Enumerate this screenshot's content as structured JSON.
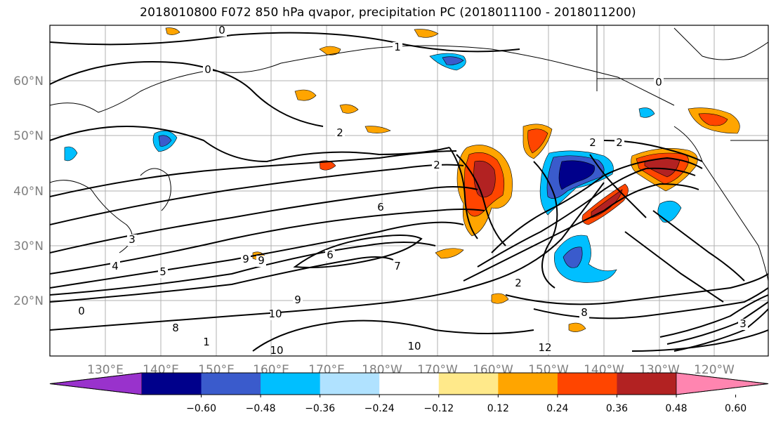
{
  "title": "2018010800 F072 850 hPa qvapor, precipitation PC (2018011100 - 2018011200)",
  "map": {
    "region": "North Pacific",
    "grid": true,
    "lat_labels": [
      "60°N",
      "50°N",
      "40°N",
      "30°N",
      "20°N"
    ],
    "lon_labels": [
      "130°E",
      "140°E",
      "150°E",
      "160°E",
      "170°E",
      "180°W",
      "170°W",
      "160°W",
      "150°W",
      "140°W",
      "130°W",
      "120°W"
    ]
  },
  "fields": {
    "contour_field": "850 hPa qvapor",
    "contour_labels": [
      "0",
      "1",
      "0",
      "0",
      "2",
      "2",
      "2",
      "2",
      "3",
      "4",
      "5",
      "6",
      "7",
      "8",
      "9",
      "9",
      "10",
      "10",
      "10",
      "12",
      "0",
      "1",
      "3",
      "2",
      "6",
      "8",
      "9"
    ],
    "shaded_field": "precipitation PC"
  },
  "colorbar": {
    "orientation": "horizontal",
    "extend": "both",
    "colors": [
      "#9932cc",
      "#00008b",
      "#3a5bcc",
      "#00bfff",
      "#b0e2ff",
      "#ffffff",
      "#ffe98a",
      "#ffa500",
      "#ff4500",
      "#b22222",
      "#ff85b0"
    ],
    "tick_labels": [
      "−0.60",
      "−0.48",
      "−0.36",
      "−0.24",
      "−0.12",
      "0.12",
      "0.24",
      "0.36",
      "0.48",
      "0.60"
    ]
  }
}
